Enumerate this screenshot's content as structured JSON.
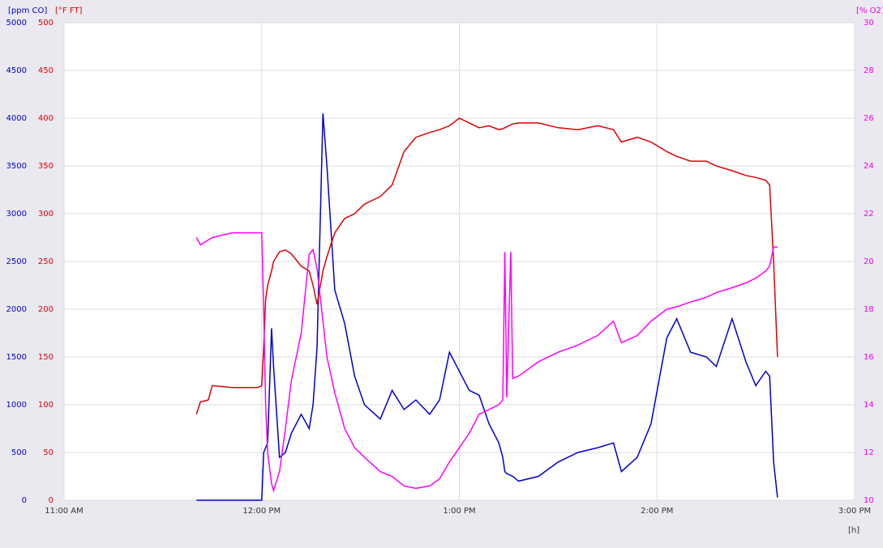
{
  "chart_data": {
    "type": "line",
    "x_label": "[h]",
    "y_label": "[ppm CO]",
    "y2_label": "[°F FT]",
    "y3_label": "[% O2]",
    "xlim": [
      11,
      15
    ],
    "xticks": [
      {
        "value": 11,
        "label": "11:00 AM"
      },
      {
        "value": 12,
        "label": "12:00 PM"
      },
      {
        "value": 13,
        "label": "1:00 PM"
      },
      {
        "value": 14,
        "label": "2:00 PM"
      },
      {
        "value": 15,
        "label": "3:00 PM"
      }
    ],
    "ylim": [
      0,
      5000
    ],
    "yticks": [
      0,
      500,
      1000,
      1500,
      2000,
      2500,
      3000,
      3500,
      4000,
      4500,
      5000
    ],
    "ytick_color": "#0000cc",
    "y2lim": [
      0,
      500
    ],
    "y2ticks": [
      0,
      50,
      100,
      150,
      200,
      250,
      300,
      350,
      400,
      450,
      500
    ],
    "y2tick_color": "#dd0000",
    "y3lim": [
      10,
      30
    ],
    "y3ticks": [
      10,
      12,
      14,
      16,
      18,
      20,
      22,
      24,
      26,
      28,
      30
    ],
    "y3tick_color": "#ee00ee",
    "grid": true,
    "x": [
      11.67,
      11.69,
      11.73,
      11.75,
      11.85,
      11.98,
      12.0,
      12.01,
      12.02,
      12.03,
      12.05,
      12.06,
      12.09,
      12.12,
      12.15,
      12.2,
      12.24,
      12.26,
      12.28,
      12.31,
      12.33,
      12.37,
      12.42,
      12.47,
      12.52,
      12.6,
      12.66,
      12.72,
      12.78,
      12.85,
      12.9,
      12.95,
      13.0,
      13.05,
      13.1,
      13.15,
      13.2,
      13.22,
      13.23,
      13.24,
      13.26,
      13.27,
      13.3,
      13.4,
      13.5,
      13.6,
      13.7,
      13.78,
      13.82,
      13.9,
      13.97,
      14.05,
      14.1,
      14.17,
      14.25,
      14.3,
      14.38,
      14.45,
      14.5,
      14.55,
      14.57,
      14.59,
      14.61
    ],
    "series": [
      {
        "name": "ppm CO",
        "color": "#0000cc",
        "axis": "y",
        "values": [
          0,
          0,
          0,
          0,
          0,
          0,
          0,
          500,
          550,
          600,
          1800,
          1400,
          450,
          500,
          700,
          900,
          750,
          1000,
          1600,
          4050,
          3500,
          2200,
          1850,
          1300,
          1000,
          850,
          1150,
          950,
          1050,
          900,
          1050,
          1550,
          1350,
          1150,
          1100,
          800,
          600,
          450,
          300,
          280,
          260,
          250,
          200,
          250,
          400,
          500,
          550,
          600,
          300,
          450,
          800,
          1700,
          1900,
          1550,
          1500,
          1400,
          1900,
          1450,
          1200,
          1350,
          1300,
          400,
          30
        ]
      },
      {
        "name": "°F FT",
        "color": "#dd0000",
        "axis": "y2",
        "values": [
          90,
          103,
          105,
          120,
          118,
          118,
          120,
          160,
          210,
          225,
          240,
          250,
          260,
          262,
          258,
          245,
          240,
          225,
          205,
          240,
          255,
          280,
          295,
          300,
          310,
          318,
          330,
          365,
          380,
          385,
          388,
          392,
          400,
          395,
          390,
          392,
          388,
          389,
          390,
          391,
          393,
          394,
          395,
          395,
          390,
          388,
          392,
          388,
          375,
          380,
          375,
          365,
          360,
          355,
          355,
          350,
          345,
          340,
          338,
          335,
          330,
          250,
          150
        ]
      },
      {
        "name": "% O2",
        "color": "#ff00ff",
        "axis": "y3",
        "values": [
          21.0,
          20.7,
          20.9,
          21.0,
          21.2,
          21.2,
          21.2,
          18,
          14,
          12,
          10.7,
          10.4,
          11.2,
          13,
          15,
          17,
          20.3,
          20.5,
          19.7,
          17.5,
          16.0,
          14.5,
          13.0,
          12.2,
          11.8,
          11.2,
          11.0,
          10.6,
          10.5,
          10.6,
          10.9,
          11.6,
          12.2,
          12.8,
          13.6,
          13.8,
          14.0,
          14.2,
          20.4,
          14.3,
          20.4,
          15.1,
          15.2,
          15.8,
          16.2,
          16.5,
          16.9,
          17.5,
          16.6,
          16.9,
          17.5,
          18.0,
          18.1,
          18.3,
          18.5,
          18.7,
          18.9,
          19.1,
          19.3,
          19.6,
          19.8,
          20.6,
          20.6
        ]
      }
    ]
  }
}
